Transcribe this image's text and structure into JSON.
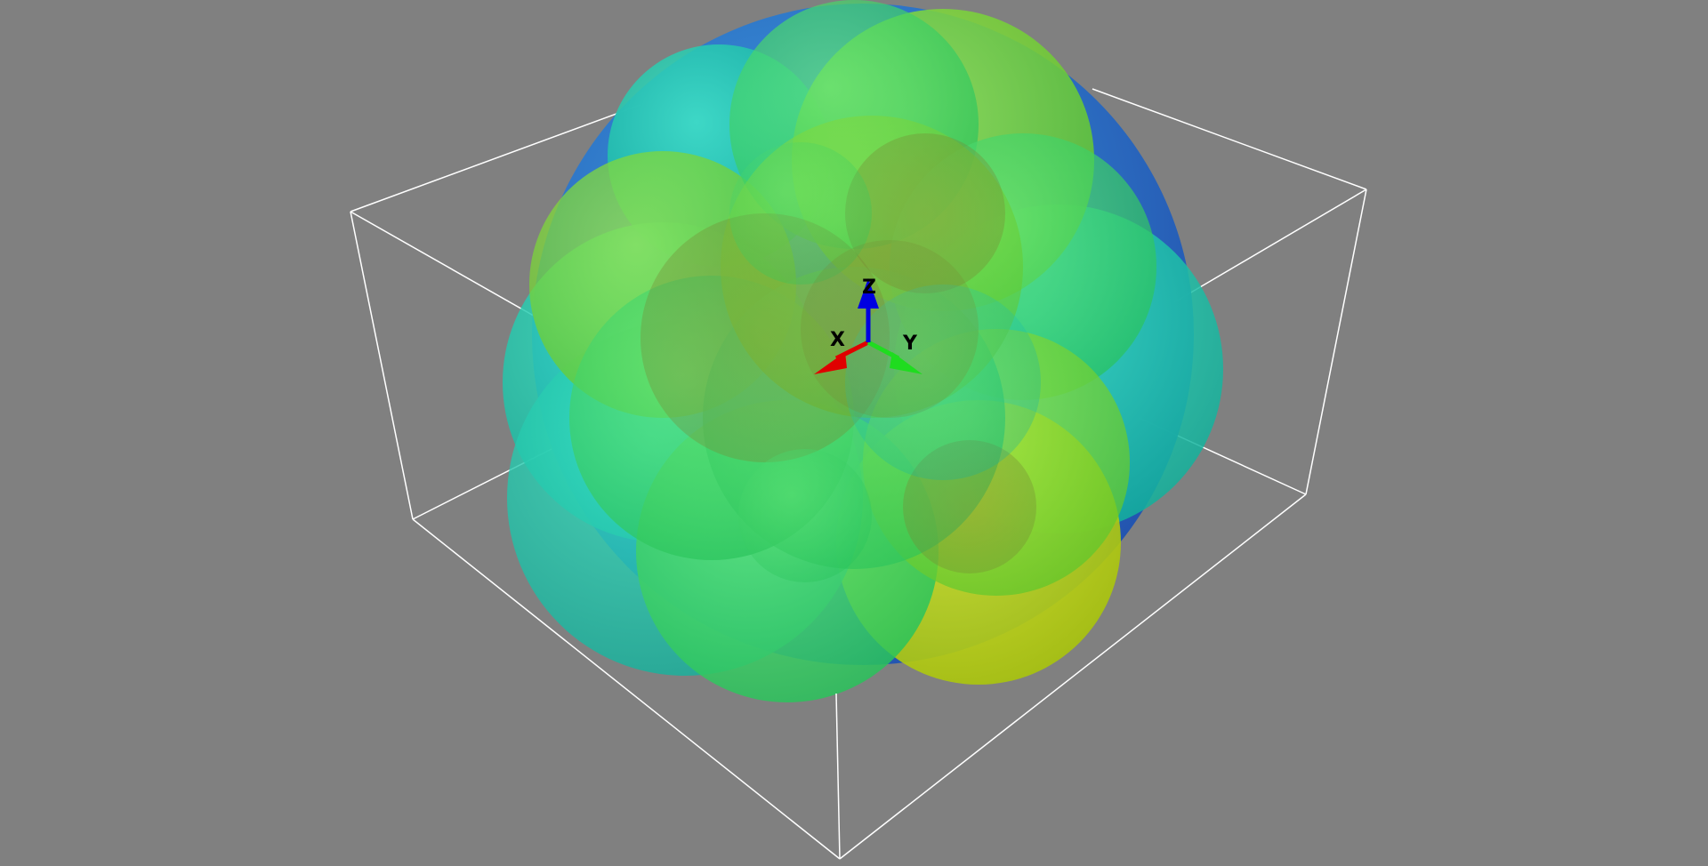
{
  "scene": {
    "background_color": "#808080",
    "bounding_box_color": "#ffffff",
    "sphere_colors": [
      "#2b8fd6",
      "#19c9a7",
      "#39d76a",
      "#7fd836",
      "#c6d80f",
      "#8aa02a"
    ]
  },
  "axes_triad": {
    "x_label": "X",
    "y_label": "Y",
    "z_label": "Z",
    "x_color": "#e00000",
    "y_color": "#1fdc1f",
    "z_color": "#0000e0"
  }
}
